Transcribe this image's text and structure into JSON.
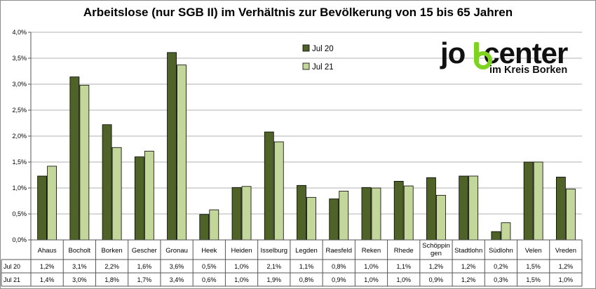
{
  "chart_data": {
    "type": "bar",
    "title": "Arbeitslose (nur SGB II) im Verhältnis zur Bevölkerung von 15 bis 65 Jahren",
    "categories": [
      "Ahaus",
      "Bocholt",
      "Borken",
      "Gescher",
      "Gronau",
      "Heek",
      "Heiden",
      "Isselburg",
      "Legden",
      "Raesfeld",
      "Reken",
      "Rhede",
      "Schöppin gen",
      "Stadtlohn",
      "Südlohn",
      "Velen",
      "Vreden"
    ],
    "category_lines": [
      [
        "Ahaus"
      ],
      [
        "Bocholt"
      ],
      [
        "Borken"
      ],
      [
        "Gescher"
      ],
      [
        "Gronau"
      ],
      [
        "Heek"
      ],
      [
        "Heiden"
      ],
      [
        "Isselburg"
      ],
      [
        "Legden"
      ],
      [
        "Raesfeld"
      ],
      [
        "Reken"
      ],
      [
        "Rhede"
      ],
      [
        "Schöppin",
        "gen"
      ],
      [
        "Stadtlohn"
      ],
      [
        "Südlohn"
      ],
      [
        "Velen"
      ],
      [
        "Vreden"
      ]
    ],
    "series": [
      {
        "name": "Jul 20",
        "color": "#4f6228",
        "values": [
          1.23,
          3.14,
          2.22,
          1.6,
          3.61,
          0.49,
          1.01,
          2.08,
          1.05,
          0.79,
          1.01,
          1.13,
          1.2,
          1.23,
          0.16,
          1.5,
          1.21
        ],
        "labels": [
          "1,2%",
          "3,1%",
          "2,2%",
          "1,6%",
          "3,6%",
          "0,5%",
          "1,0%",
          "2,1%",
          "1,1%",
          "0,8%",
          "1,0%",
          "1,1%",
          "1,2%",
          "1,2%",
          "0,2%",
          "1,5%",
          "1,2%"
        ]
      },
      {
        "name": "Jul 21",
        "color": "#c4d79b",
        "values": [
          1.42,
          2.98,
          1.78,
          1.71,
          3.37,
          0.58,
          1.03,
          1.89,
          0.82,
          0.94,
          1.0,
          1.04,
          0.86,
          1.23,
          0.33,
          1.5,
          0.98
        ],
        "labels": [
          "1,4%",
          "3,0%",
          "1,8%",
          "1,7%",
          "3,4%",
          "0,6%",
          "1,0%",
          "1,9%",
          "0,8%",
          "0,9%",
          "1,0%",
          "1,0%",
          "0,9%",
          "1,2%",
          "0,3%",
          "1,5%",
          "1,0%"
        ]
      }
    ],
    "ylim": [
      0,
      4
    ],
    "yticks": [
      "0,0%",
      "0,5%",
      "1,0%",
      "1,5%",
      "2,0%",
      "2,5%",
      "3,0%",
      "3,5%",
      "4,0%"
    ],
    "grid": true,
    "legend_position": "top-center",
    "data_table": true
  },
  "logo": {
    "text_before": "jo",
    "text_after": "center",
    "subtitle": "im Kreis Borken",
    "accent_color": "#7ed321"
  }
}
